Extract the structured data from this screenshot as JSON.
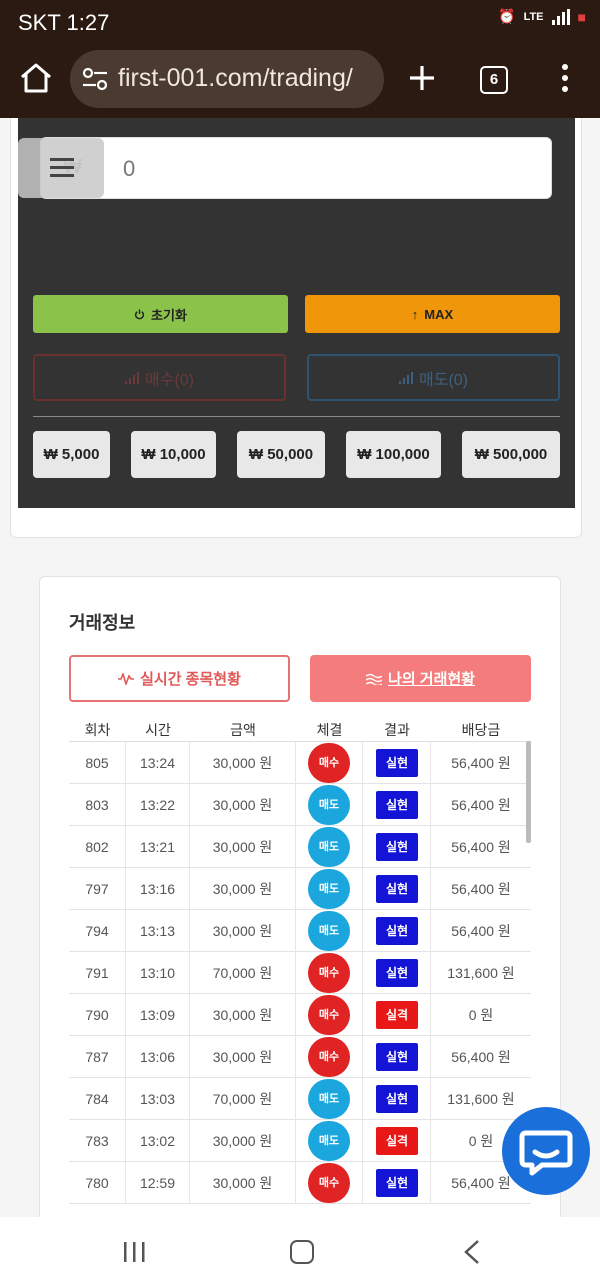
{
  "status_bar": {
    "time": "SKT 1:27",
    "network": "LTE",
    "battery": "■"
  },
  "browser": {
    "url": "first-001.com/trading/",
    "tab_count": "6"
  },
  "trade_panel": {
    "currency_symbol": "₩",
    "amount_value": "0",
    "reset_label": "초기화",
    "max_label": "MAX",
    "buy_label": "매수(0)",
    "sell_label": "매도(0)",
    "chips": [
      "₩ 5,000",
      "₩ 10,000",
      "₩ 50,000",
      "₩ 100,000",
      "₩ 500,000"
    ]
  },
  "trade_info": {
    "title": "거래정보",
    "tab_live": "실시간 종목현황",
    "tab_mine": "나의 거래현황",
    "columns": [
      "회차",
      "시간",
      "금액",
      "체결",
      "결과",
      "배당금"
    ],
    "rows": [
      {
        "round": "805",
        "time": "13:24",
        "amount": "30,000 원",
        "direction": "매수",
        "result": "실현",
        "payout": "56,400 원"
      },
      {
        "round": "803",
        "time": "13:22",
        "amount": "30,000 원",
        "direction": "매도",
        "result": "실현",
        "payout": "56,400 원"
      },
      {
        "round": "802",
        "time": "13:21",
        "amount": "30,000 원",
        "direction": "매도",
        "result": "실현",
        "payout": "56,400 원"
      },
      {
        "round": "797",
        "time": "13:16",
        "amount": "30,000 원",
        "direction": "매도",
        "result": "실현",
        "payout": "56,400 원"
      },
      {
        "round": "794",
        "time": "13:13",
        "amount": "30,000 원",
        "direction": "매도",
        "result": "실현",
        "payout": "56,400 원"
      },
      {
        "round": "791",
        "time": "13:10",
        "amount": "70,000 원",
        "direction": "매수",
        "result": "실현",
        "payout": "131,600 원"
      },
      {
        "round": "790",
        "time": "13:09",
        "amount": "30,000 원",
        "direction": "매수",
        "result": "실격",
        "payout": "0 원"
      },
      {
        "round": "787",
        "time": "13:06",
        "amount": "30,000 원",
        "direction": "매수",
        "result": "실현",
        "payout": "56,400 원"
      },
      {
        "round": "784",
        "time": "13:03",
        "amount": "70,000 원",
        "direction": "매도",
        "result": "실현",
        "payout": "131,600 원"
      },
      {
        "round": "783",
        "time": "13:02",
        "amount": "30,000 원",
        "direction": "매도",
        "result": "실격",
        "payout": "0 원"
      },
      {
        "round": "780",
        "time": "12:59",
        "amount": "30,000 원",
        "direction": "매수",
        "result": "실현",
        "payout": "56,400 원"
      }
    ]
  },
  "icons": {
    "home": "home-icon",
    "tune": "site-settings-icon",
    "plus": "new-tab-icon",
    "menu": "more-vert-icon",
    "power": "power-icon",
    "arrow_up": "arrow-up-icon",
    "signal": "signal-bars-icon",
    "wave": "wave-icon",
    "chat": "chat-icon"
  },
  "colors": {
    "buy": "#e02424",
    "sell": "#1ba7dd",
    "win": "#1414d6",
    "lose": "#e81818",
    "reset": "#8bc34a",
    "max": "#f0960a",
    "tab_mine": "#f47c7c",
    "browser_bar": "#2b1a12"
  }
}
